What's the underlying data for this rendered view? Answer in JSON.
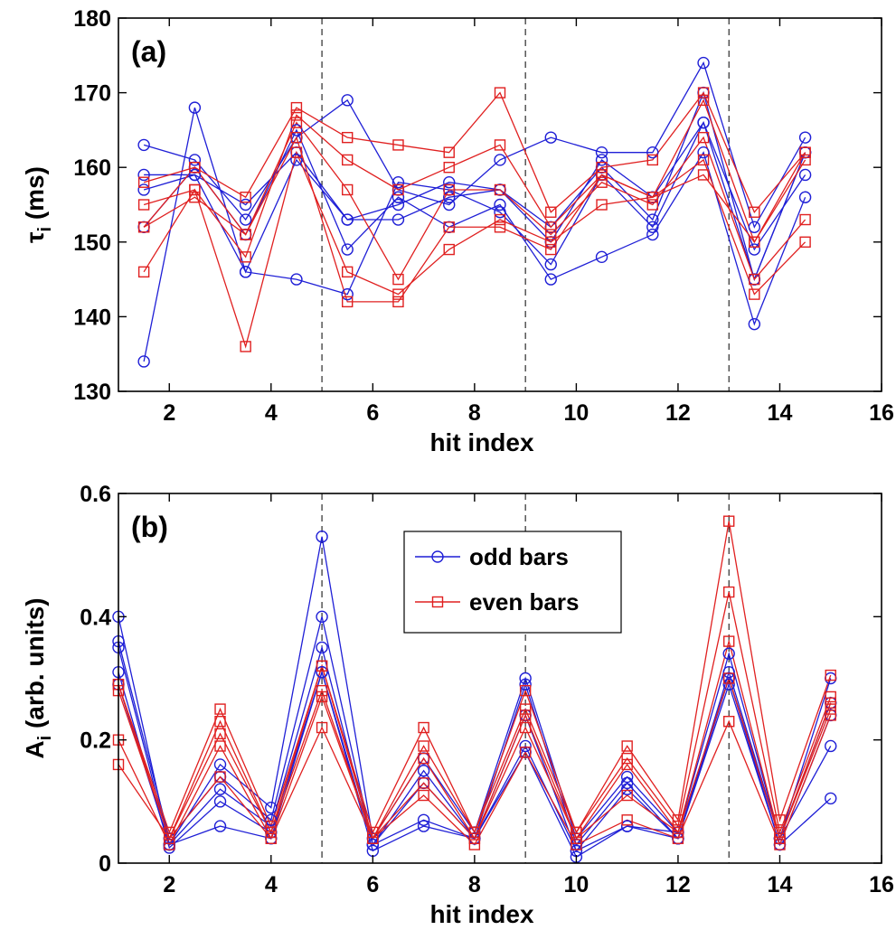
{
  "chart_data": [
    {
      "type": "line",
      "panel_label": "(a)",
      "xlabel": "hit index",
      "ylabel_main": "τ",
      "ylabel_sub": "i",
      "ylabel_rest": " (ms)",
      "xlim": [
        1,
        16
      ],
      "ylim": [
        130,
        180
      ],
      "xticks": [
        2,
        4,
        6,
        8,
        10,
        12,
        14,
        16
      ],
      "yticks": [
        130,
        140,
        150,
        160,
        170,
        180
      ],
      "vlines": [
        5,
        9,
        13
      ],
      "x": [
        1.5,
        2.5,
        3.5,
        4.5,
        5.5,
        6.5,
        7.5,
        8.5,
        9.5,
        10.5,
        11.5,
        12.5,
        13.5,
        14.5
      ],
      "series": [
        {
          "group": "odd",
          "marker": "o",
          "values": [
            163,
            161,
            153,
            164,
            169,
            157,
            155,
            161,
            164,
            162,
            162,
            174,
            152,
            164
          ]
        },
        {
          "group": "odd",
          "marker": "o",
          "values": [
            159,
            159,
            155,
            162,
            153,
            153,
            156,
            157,
            152,
            160,
            153,
            170,
            145,
            162
          ]
        },
        {
          "group": "odd",
          "marker": "o",
          "values": [
            157,
            159,
            146,
            145,
            143,
            158,
            157,
            154,
            147,
            159,
            152,
            166,
            149,
            159
          ]
        },
        {
          "group": "odd",
          "marker": "o",
          "values": [
            152,
            160,
            151,
            165,
            149,
            156,
            152,
            155,
            145,
            148,
            151,
            162,
            139,
            156
          ]
        },
        {
          "group": "odd",
          "marker": "o",
          "values": [
            134,
            168,
            146,
            161,
            153,
            155,
            158,
            157,
            150,
            161,
            156,
            166,
            145,
            162
          ]
        },
        {
          "group": "even",
          "marker": "s",
          "values": [
            158,
            160,
            156,
            168,
            164,
            163,
            162,
            170,
            154,
            160,
            161,
            170,
            154,
            162
          ]
        },
        {
          "group": "even",
          "marker": "s",
          "values": [
            155,
            157,
            148,
            167,
            161,
            157,
            160,
            163,
            152,
            159,
            156,
            169,
            150,
            161
          ]
        },
        {
          "group": "even",
          "marker": "s",
          "values": [
            152,
            156,
            151,
            166,
            157,
            145,
            157,
            157,
            151,
            158,
            155,
            164,
            145,
            153
          ]
        },
        {
          "group": "even",
          "marker": "s",
          "values": [
            146,
            157,
            136,
            162,
            146,
            143,
            149,
            153,
            150,
            155,
            156,
            161,
            143,
            150
          ]
        },
        {
          "group": "even",
          "marker": "s",
          "values": [
            152,
            160,
            151,
            164,
            142,
            142,
            152,
            152,
            149,
            159,
            156,
            159,
            150,
            162
          ]
        }
      ]
    },
    {
      "type": "line",
      "panel_label": "(b)",
      "xlabel": "hit index",
      "ylabel_main": "A",
      "ylabel_sub": "i",
      "ylabel_rest": " (arb. units)",
      "xlim": [
        1,
        16
      ],
      "ylim": [
        0,
        0.6
      ],
      "xticks": [
        2,
        4,
        6,
        8,
        10,
        12,
        14,
        16
      ],
      "yticks": [
        0,
        0.2,
        0.4,
        0.6
      ],
      "ytick_labels": [
        "0",
        "0.2",
        "0.4",
        "0.6"
      ],
      "vlines": [
        5,
        9,
        13
      ],
      "x": [
        1,
        2,
        3,
        4,
        5,
        6,
        7,
        8,
        9,
        10,
        11,
        12,
        13,
        14,
        15
      ],
      "legend": {
        "position": "upper-center",
        "entries": [
          {
            "label": "odd bars",
            "color": "#1f1fd6",
            "marker": "o"
          },
          {
            "label": "even bars",
            "color": "#e02020",
            "marker": "s"
          }
        ]
      },
      "series": [
        {
          "group": "odd",
          "marker": "o",
          "values": [
            0.4,
            0.03,
            0.16,
            0.09,
            0.53,
            0.04,
            0.17,
            0.05,
            0.3,
            0.04,
            0.14,
            0.05,
            0.34,
            0.04,
            0.3
          ]
        },
        {
          "group": "odd",
          "marker": "o",
          "values": [
            0.36,
            0.04,
            0.14,
            0.07,
            0.4,
            0.03,
            0.15,
            0.04,
            0.29,
            0.03,
            0.13,
            0.04,
            0.31,
            0.04,
            0.26
          ]
        },
        {
          "group": "odd",
          "marker": "o",
          "values": [
            0.35,
            0.03,
            0.12,
            0.06,
            0.35,
            0.03,
            0.13,
            0.04,
            0.24,
            0.02,
            0.12,
            0.04,
            0.3,
            0.03,
            0.24
          ]
        },
        {
          "group": "odd",
          "marker": "o",
          "values": [
            0.31,
            0.025,
            0.1,
            0.05,
            0.31,
            0.03,
            0.07,
            0.04,
            0.19,
            0.02,
            0.06,
            0.05,
            0.3,
            0.04,
            0.19
          ]
        },
        {
          "group": "odd",
          "marker": "o",
          "values": [
            0.29,
            0.03,
            0.06,
            0.04,
            0.31,
            0.02,
            0.06,
            0.04,
            0.18,
            0.01,
            0.06,
            0.04,
            0.29,
            0.03,
            0.105
          ]
        },
        {
          "group": "even",
          "marker": "s",
          "values": [
            0.29,
            0.05,
            0.25,
            0.06,
            0.32,
            0.05,
            0.22,
            0.05,
            0.28,
            0.05,
            0.19,
            0.07,
            0.555,
            0.07,
            0.305
          ]
        },
        {
          "group": "even",
          "marker": "s",
          "values": [
            0.29,
            0.04,
            0.23,
            0.05,
            0.32,
            0.04,
            0.19,
            0.05,
            0.25,
            0.05,
            0.17,
            0.06,
            0.44,
            0.05,
            0.27
          ]
        },
        {
          "group": "even",
          "marker": "s",
          "values": [
            0.28,
            0.04,
            0.21,
            0.05,
            0.28,
            0.04,
            0.17,
            0.04,
            0.24,
            0.04,
            0.16,
            0.05,
            0.36,
            0.04,
            0.26
          ]
        },
        {
          "group": "even",
          "marker": "s",
          "values": [
            0.2,
            0.03,
            0.19,
            0.04,
            0.27,
            0.04,
            0.13,
            0.04,
            0.22,
            0.04,
            0.11,
            0.05,
            0.3,
            0.04,
            0.25
          ]
        },
        {
          "group": "even",
          "marker": "s",
          "values": [
            0.16,
            0.04,
            0.14,
            0.04,
            0.22,
            0.04,
            0.11,
            0.03,
            0.18,
            0.03,
            0.07,
            0.04,
            0.23,
            0.03,
            0.24
          ]
        }
      ]
    }
  ],
  "colors": {
    "odd": "#1f1fd6",
    "even": "#e02020",
    "axis": "#000000",
    "vline": "#000000"
  }
}
